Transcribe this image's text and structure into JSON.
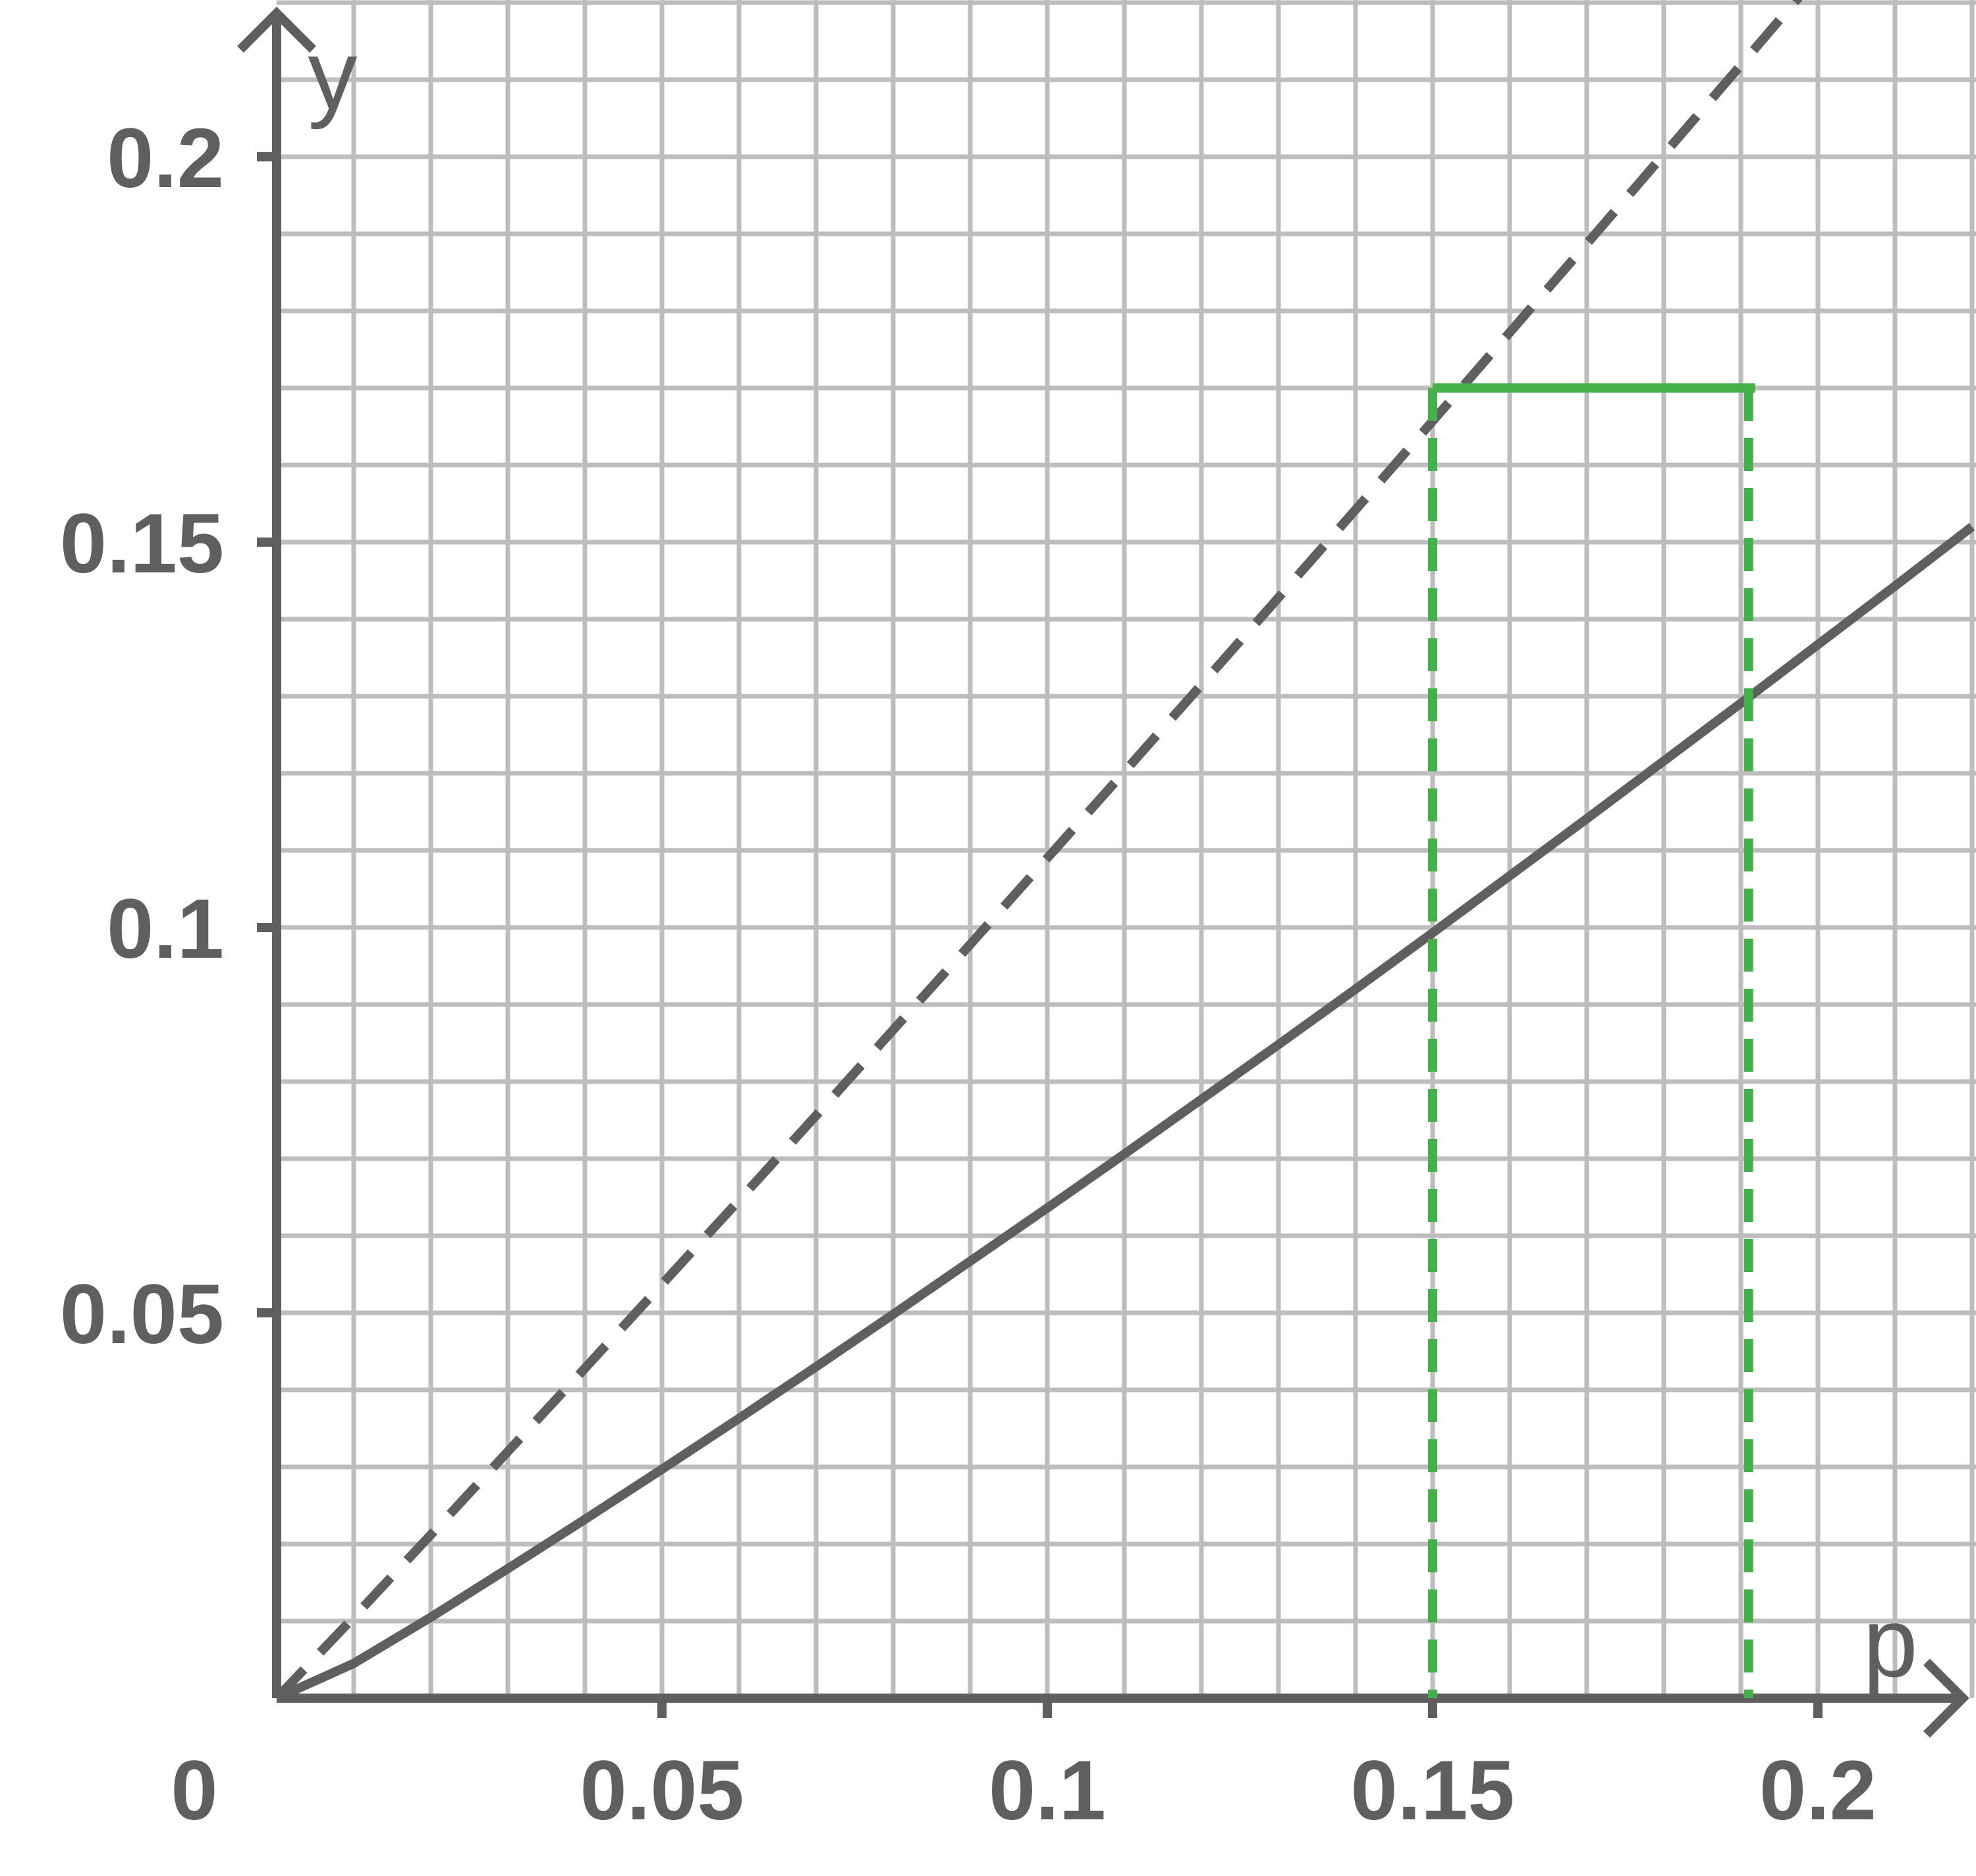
{
  "chart_data": {
    "type": "line",
    "xlabel": "p",
    "ylabel": "y",
    "origin_label": "0",
    "xlim": [
      0,
      0.22
    ],
    "ylim": [
      0,
      0.22
    ],
    "x_ticks": [
      0.05,
      0.1,
      0.15,
      0.2
    ],
    "x_tick_labels": [
      "0.05",
      "0.1",
      "0.15",
      "0.2"
    ],
    "y_ticks": [
      0.05,
      0.1,
      0.15,
      0.2
    ],
    "y_tick_labels": [
      "0.05",
      "0.1",
      "0.15",
      "0.2"
    ],
    "grid": true,
    "grid_step": 0.01,
    "series": [
      {
        "style": "solid",
        "color": "#5f5f5f",
        "x": [
          0,
          0.01,
          0.02,
          0.03,
          0.04,
          0.05,
          0.06,
          0.07,
          0.08,
          0.09,
          0.1,
          0.11,
          0.12,
          0.13,
          0.14,
          0.15,
          0.16,
          0.17,
          0.18,
          0.19,
          0.2,
          0.21,
          0.22
        ],
        "y": [
          0,
          0.0045,
          0.0105,
          0.0168,
          0.0232,
          0.0297,
          0.0363,
          0.043,
          0.0498,
          0.0567,
          0.0636,
          0.0706,
          0.0777,
          0.0848,
          0.092,
          0.0993,
          0.1067,
          0.1141,
          0.1216,
          0.1291,
          0.1367,
          0.1443,
          0.152
        ]
      },
      {
        "style": "dashed",
        "color": "#5f5f5f",
        "x": [
          0,
          0.01,
          0.02,
          0.03,
          0.04,
          0.05,
          0.06,
          0.07,
          0.08,
          0.09,
          0.1,
          0.11,
          0.12,
          0.13,
          0.14,
          0.15,
          0.16,
          0.17,
          0.18,
          0.19,
          0.2
        ],
        "y": [
          0,
          0.0105,
          0.0212,
          0.032,
          0.0428,
          0.0537,
          0.0646,
          0.0756,
          0.0867,
          0.0978,
          0.109,
          0.1202,
          0.1315,
          0.1428,
          0.1542,
          0.1657,
          0.1772,
          0.1887,
          0.2003,
          0.2119,
          0.2236
        ]
      }
    ],
    "annotation": {
      "color": "#44b04a",
      "y_level": 0.17,
      "x_left": 0.15,
      "x_right": 0.191
    }
  }
}
